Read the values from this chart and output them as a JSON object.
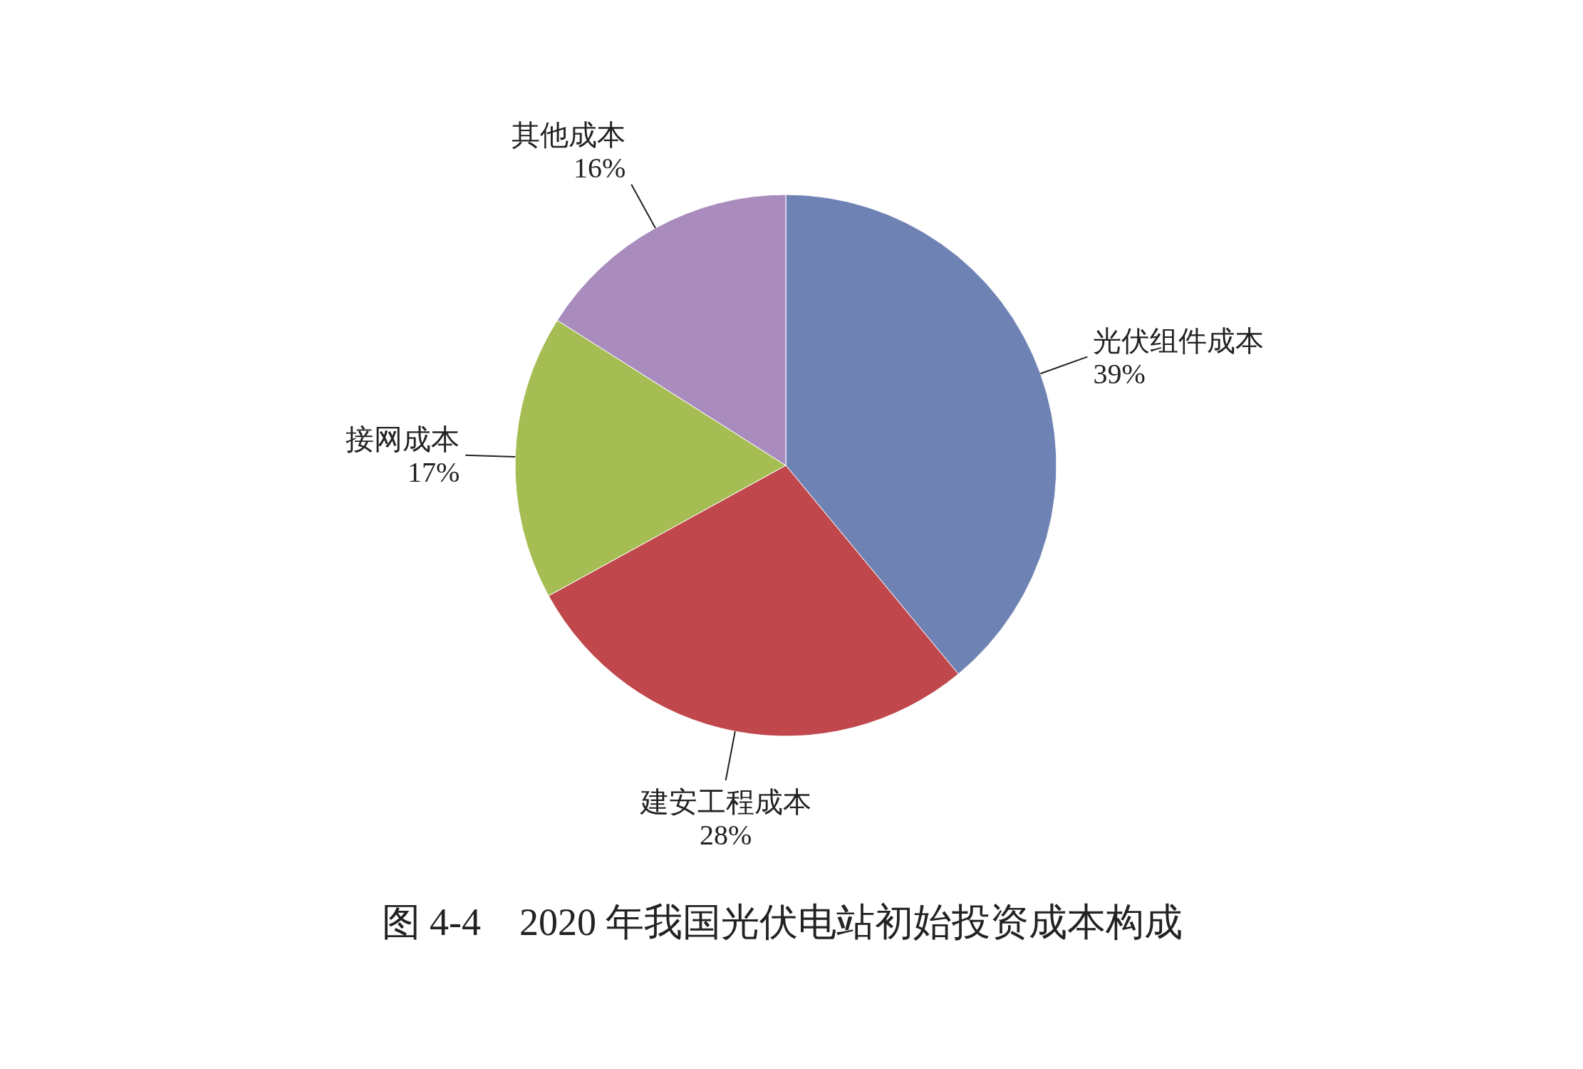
{
  "chart_data": {
    "type": "pie",
    "title": "图 4-4　2020 年我国光伏电站初始投资成本构成",
    "categories": [
      "光伏组件成本",
      "建安工程成本",
      "接网成本",
      "其他成本"
    ],
    "values": [
      39,
      28,
      17,
      16
    ],
    "colors": [
      "#6f82b4",
      "#c0474b",
      "#a5bd52",
      "#a98cbd"
    ],
    "value_labels": [
      "39%",
      "28%",
      "17%",
      "16%"
    ]
  }
}
